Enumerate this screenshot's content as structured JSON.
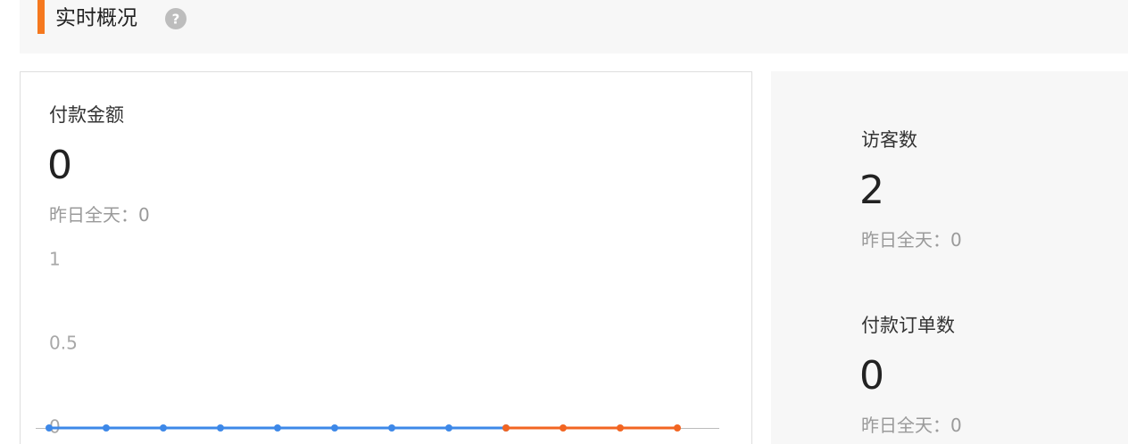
{
  "header": {
    "title": "实时概况",
    "help": "?"
  },
  "cards": [
    {
      "label": "付款金额",
      "value": 0,
      "yesterday_label": "昨日全天：",
      "yesterday": 0
    },
    {
      "label": "访客数",
      "value": 2,
      "yesterday_label": "昨日全天：",
      "yesterday": 0
    },
    {
      "label": "付款订单数",
      "value": 0,
      "yesterday_label": "昨日全天：",
      "yesterday": 0
    }
  ],
  "chart_data": {
    "type": "line",
    "categories": [
      null,
      null,
      null,
      null,
      null,
      null,
      null,
      null,
      null,
      null,
      null,
      null
    ],
    "series": [
      {
        "color": "#3d88e8",
        "values": [
          0,
          0,
          0,
          0,
          0,
          0,
          0,
          0,
          0,
          null,
          null,
          null
        ]
      },
      {
        "color": "#f26522",
        "values": [
          null,
          null,
          null,
          null,
          null,
          null,
          null,
          null,
          0,
          0,
          0,
          0
        ]
      }
    ],
    "ylim": [
      0,
      1
    ],
    "yticks": [
      0,
      0.5,
      1
    ]
  }
}
